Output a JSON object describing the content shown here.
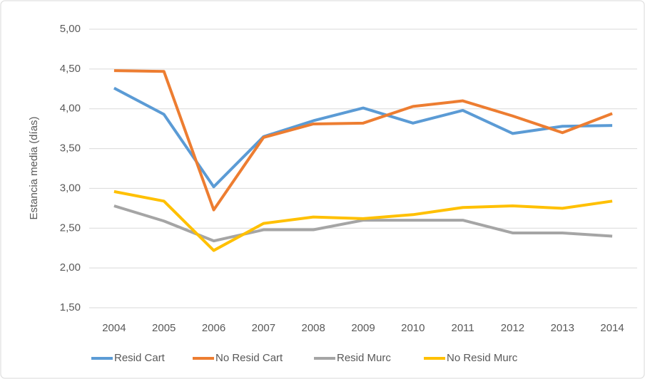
{
  "chart_data": {
    "type": "line",
    "y_label": "Estancia media (días)",
    "categories": [
      "2004",
      "2005",
      "2006",
      "2007",
      "2008",
      "2009",
      "2010",
      "2011",
      "2012",
      "2013",
      "2014"
    ],
    "series": [
      {
        "name": "Resid Cart",
        "color": "#5b9bd5",
        "values": [
          4.26,
          3.93,
          3.02,
          3.65,
          3.85,
          4.01,
          3.82,
          3.98,
          3.69,
          3.78,
          3.79
        ]
      },
      {
        "name": "No Resid Cart",
        "color": "#ed7d31",
        "values": [
          4.48,
          4.47,
          2.73,
          3.64,
          3.81,
          3.82,
          4.03,
          4.1,
          3.91,
          3.7,
          3.94
        ]
      },
      {
        "name": "Resid Murc",
        "color": "#a5a5a5",
        "values": [
          2.78,
          2.59,
          2.34,
          2.48,
          2.48,
          2.6,
          2.6,
          2.6,
          2.44,
          2.44,
          2.4
        ]
      },
      {
        "name": "No Resid Murc",
        "color": "#ffc000",
        "values": [
          2.96,
          2.84,
          2.22,
          2.56,
          2.64,
          2.62,
          2.67,
          2.76,
          2.78,
          2.75,
          2.84
        ]
      }
    ],
    "ylim": [
      1.5,
      5
    ],
    "yticks": [
      {
        "value": 1.5,
        "label": "1,50"
      },
      {
        "value": 2,
        "label": "2,00"
      },
      {
        "value": 2.5,
        "label": "2,50"
      },
      {
        "value": 3,
        "label": "3,00"
      },
      {
        "value": 3.5,
        "label": "3,50"
      },
      {
        "value": 4,
        "label": "4,00"
      },
      {
        "value": 4.5,
        "label": "4,50"
      },
      {
        "value": 5,
        "label": "5,00"
      }
    ],
    "grid": true,
    "legend": "bottom"
  }
}
